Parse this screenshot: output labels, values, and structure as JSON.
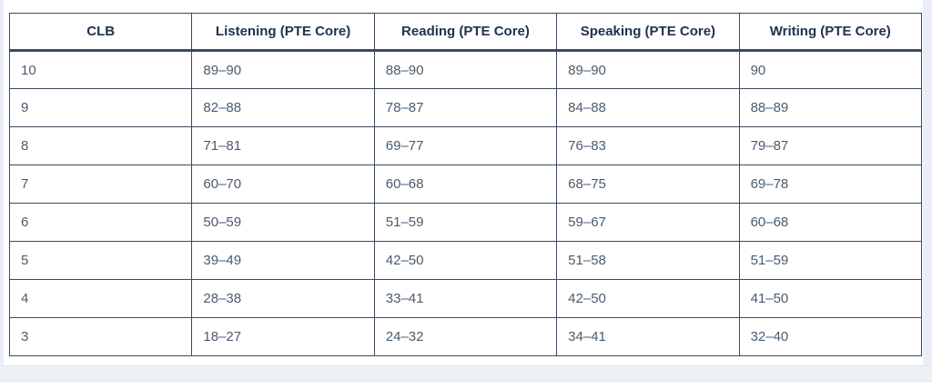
{
  "page": {
    "background": "#ffffff",
    "edge_strip_color": "#e9eff7",
    "bottom_band_color": "#edf1f5",
    "border_color": "#3c4a5e",
    "header_text_color": "#21324f",
    "body_text_color": "#4a5b6e"
  },
  "table": {
    "columns": [
      "CLB",
      "Listening (PTE Core)",
      "Reading (PTE Core)",
      "Speaking (PTE Core)",
      "Writing (PTE Core)"
    ],
    "rows": [
      [
        "10",
        "89–90",
        "88–90",
        "89–90",
        "90"
      ],
      [
        "9",
        "82–88",
        "78–87",
        "84–88",
        "88–89"
      ],
      [
        "8",
        "71–81",
        "69–77",
        "76–83",
        "79–87"
      ],
      [
        "7",
        "60–70",
        "60–68",
        "68–75",
        "69–78"
      ],
      [
        "6",
        "50–59",
        "51–59",
        "59–67",
        "60–68"
      ],
      [
        "5",
        "39–49",
        "42–50",
        "51–58",
        "51–59"
      ],
      [
        "4",
        "28–38",
        "33–41",
        "42–50",
        "41–50"
      ],
      [
        "3",
        "18–27",
        "24–32",
        "34–41",
        "32–40"
      ]
    ]
  },
  "chart_data": {
    "type": "table",
    "title": "",
    "columns": [
      "CLB",
      "Listening (PTE Core)",
      "Reading (PTE Core)",
      "Speaking (PTE Core)",
      "Writing (PTE Core)"
    ],
    "rows": [
      [
        "10",
        "89–90",
        "88–90",
        "89–90",
        "90"
      ],
      [
        "9",
        "82–88",
        "78–87",
        "84–88",
        "88–89"
      ],
      [
        "8",
        "71–81",
        "69–77",
        "76–83",
        "79–87"
      ],
      [
        "7",
        "60–70",
        "60–68",
        "68–75",
        "69–78"
      ],
      [
        "6",
        "50–59",
        "51–59",
        "59–67",
        "60–68"
      ],
      [
        "5",
        "39–49",
        "42–50",
        "51–58",
        "51–59"
      ],
      [
        "4",
        "28–38",
        "33–41",
        "42–50",
        "41–50"
      ],
      [
        "3",
        "18–27",
        "24–32",
        "34–41",
        "32–40"
      ]
    ]
  }
}
